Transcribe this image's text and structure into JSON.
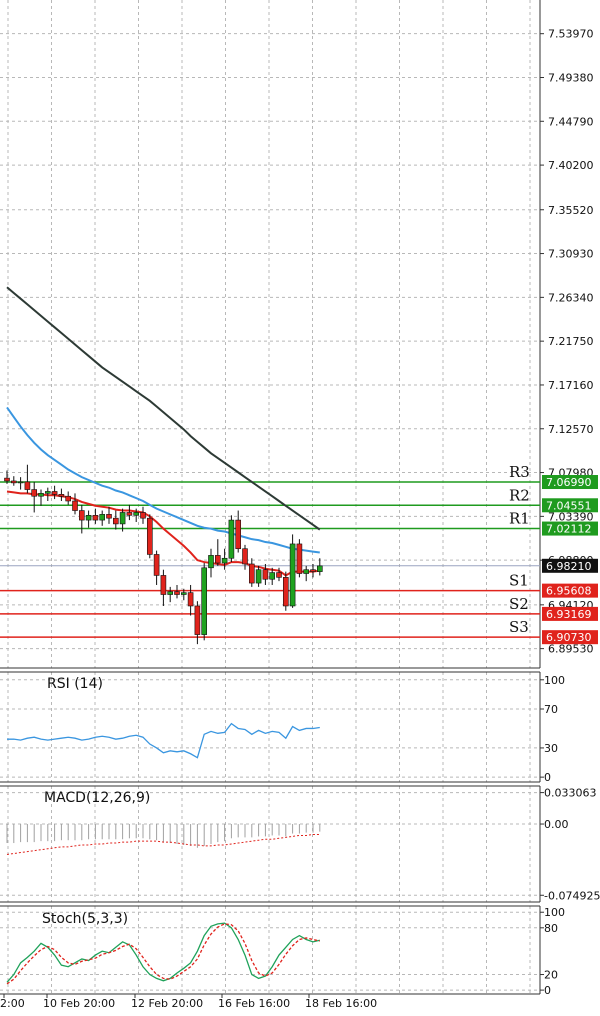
{
  "chart_data": [
    {
      "type": "candlestick",
      "panel": "price",
      "ylim": [
        6.875,
        7.575
      ],
      "y_ticks": [
        {
          "value": 7.5397,
          "label": "7.53970"
        },
        {
          "value": 7.4938,
          "label": "7.49380"
        },
        {
          "value": 7.4479,
          "label": "7.44790"
        },
        {
          "value": 7.402,
          "label": "7.40200"
        },
        {
          "value": 7.3552,
          "label": "7.35520"
        },
        {
          "value": 7.3093,
          "label": "7.30930"
        },
        {
          "value": 7.2634,
          "label": "7.26340"
        },
        {
          "value": 7.2175,
          "label": "7.21750"
        },
        {
          "value": 7.1716,
          "label": "7.17160"
        },
        {
          "value": 7.1257,
          "label": "7.12570"
        },
        {
          "value": 7.0798,
          "label": "7.07980"
        },
        {
          "value": 7.0339,
          "label": "7.03390"
        },
        {
          "value": 6.988,
          "label": "6.98800"
        },
        {
          "value": 6.9412,
          "label": "6.94120"
        },
        {
          "value": 6.8953,
          "label": "6.89530"
        }
      ],
      "x_ticks": [
        "2:00",
        "10 Feb 20:00",
        "12 Feb 20:00",
        "16 Feb 16:00",
        "18 Feb 16:00"
      ],
      "candles": [
        {
          "o": 7.074,
          "h": 7.082,
          "l": 7.068,
          "c": 7.071
        },
        {
          "o": 7.071,
          "h": 7.076,
          "l": 7.066,
          "c": 7.069
        },
        {
          "o": 7.069,
          "h": 7.075,
          "l": 7.062,
          "c": 7.07
        },
        {
          "o": 7.07,
          "h": 7.088,
          "l": 7.058,
          "c": 7.062
        },
        {
          "o": 7.062,
          "h": 7.07,
          "l": 7.038,
          "c": 7.055
        },
        {
          "o": 7.055,
          "h": 7.062,
          "l": 7.045,
          "c": 7.058
        },
        {
          "o": 7.058,
          "h": 7.064,
          "l": 7.05,
          "c": 7.06
        },
        {
          "o": 7.06,
          "h": 7.066,
          "l": 7.052,
          "c": 7.057
        },
        {
          "o": 7.057,
          "h": 7.063,
          "l": 7.05,
          "c": 7.055
        },
        {
          "o": 7.055,
          "h": 7.06,
          "l": 7.046,
          "c": 7.05
        },
        {
          "o": 7.05,
          "h": 7.058,
          "l": 7.036,
          "c": 7.04
        },
        {
          "o": 7.04,
          "h": 7.046,
          "l": 7.016,
          "c": 7.03
        },
        {
          "o": 7.03,
          "h": 7.04,
          "l": 7.022,
          "c": 7.035
        },
        {
          "o": 7.035,
          "h": 7.042,
          "l": 7.026,
          "c": 7.03
        },
        {
          "o": 7.03,
          "h": 7.04,
          "l": 7.024,
          "c": 7.036
        },
        {
          "o": 7.036,
          "h": 7.044,
          "l": 7.026,
          "c": 7.032
        },
        {
          "o": 7.032,
          "h": 7.04,
          "l": 7.02,
          "c": 7.026
        },
        {
          "o": 7.026,
          "h": 7.042,
          "l": 7.018,
          "c": 7.038
        },
        {
          "o": 7.038,
          "h": 7.046,
          "l": 7.03,
          "c": 7.035
        },
        {
          "o": 7.035,
          "h": 7.042,
          "l": 7.028,
          "c": 7.038
        },
        {
          "o": 7.038,
          "h": 7.044,
          "l": 7.026,
          "c": 7.032
        },
        {
          "o": 7.032,
          "h": 7.036,
          "l": 6.99,
          "c": 6.994
        },
        {
          "o": 6.994,
          "h": 6.998,
          "l": 6.962,
          "c": 6.972
        },
        {
          "o": 6.972,
          "h": 6.978,
          "l": 6.94,
          "c": 6.952
        },
        {
          "o": 6.952,
          "h": 6.96,
          "l": 6.944,
          "c": 6.955
        },
        {
          "o": 6.955,
          "h": 6.962,
          "l": 6.948,
          "c": 6.952
        },
        {
          "o": 6.952,
          "h": 6.958,
          "l": 6.946,
          "c": 6.954
        },
        {
          "o": 6.954,
          "h": 6.962,
          "l": 6.93,
          "c": 6.94
        },
        {
          "o": 6.94,
          "h": 6.945,
          "l": 6.9,
          "c": 6.91
        },
        {
          "o": 6.91,
          "h": 6.985,
          "l": 6.904,
          "c": 6.98
        },
        {
          "o": 6.98,
          "h": 7.0,
          "l": 6.97,
          "c": 6.993
        },
        {
          "o": 6.993,
          "h": 7.01,
          "l": 6.982,
          "c": 6.985
        },
        {
          "o": 6.985,
          "h": 7.0,
          "l": 6.978,
          "c": 6.99
        },
        {
          "o": 6.99,
          "h": 7.035,
          "l": 6.986,
          "c": 7.03
        },
        {
          "o": 7.03,
          "h": 7.04,
          "l": 6.996,
          "c": 7.0
        },
        {
          "o": 7.0,
          "h": 7.004,
          "l": 6.978,
          "c": 6.984
        },
        {
          "o": 6.984,
          "h": 6.99,
          "l": 6.96,
          "c": 6.964
        },
        {
          "o": 6.964,
          "h": 6.982,
          "l": 6.96,
          "c": 6.978
        },
        {
          "o": 6.978,
          "h": 6.984,
          "l": 6.962,
          "c": 6.968
        },
        {
          "o": 6.968,
          "h": 6.98,
          "l": 6.962,
          "c": 6.975
        },
        {
          "o": 6.975,
          "h": 6.98,
          "l": 6.966,
          "c": 6.97
        },
        {
          "o": 6.97,
          "h": 6.976,
          "l": 6.935,
          "c": 6.94
        },
        {
          "o": 6.94,
          "h": 7.015,
          "l": 6.938,
          "c": 7.005
        },
        {
          "o": 7.005,
          "h": 7.01,
          "l": 6.97,
          "c": 6.974
        },
        {
          "o": 6.974,
          "h": 6.982,
          "l": 6.966,
          "c": 6.978
        },
        {
          "o": 6.978,
          "h": 6.984,
          "l": 6.97,
          "c": 6.976
        },
        {
          "o": 6.976,
          "h": 6.99,
          "l": 6.972,
          "c": 6.982
        }
      ],
      "moving_averages": [
        {
          "color": "#e0231c",
          "values": [
            7.06,
            7.059,
            7.058,
            7.058,
            7.057,
            7.057,
            7.056,
            7.056,
            7.055,
            7.054,
            7.052,
            7.049,
            7.047,
            7.045,
            7.044,
            7.043,
            7.041,
            7.04,
            7.04,
            7.039,
            7.038,
            7.034,
            7.028,
            7.021,
            7.015,
            7.009,
            7.003,
            6.996,
            6.988,
            6.986,
            6.985,
            6.984,
            6.983,
            6.986,
            6.986,
            6.985,
            6.982,
            6.981,
            6.979,
            6.978,
            6.977,
            6.972,
            6.976,
            6.976,
            6.976,
            6.976,
            6.977
          ]
        },
        {
          "color": "#3a96e0",
          "x_start": 0,
          "values": [
            7.148,
            7.138,
            7.128,
            7.119,
            7.111,
            7.104,
            7.098,
            7.093,
            7.088,
            7.083,
            7.079,
            7.075,
            7.072,
            7.069,
            7.066,
            7.064,
            7.061,
            7.059,
            7.056,
            7.053,
            7.05,
            7.046,
            7.042,
            7.039,
            7.036,
            7.033,
            7.03,
            7.027,
            7.024,
            7.022,
            7.021,
            7.019,
            7.018,
            7.016,
            7.014,
            7.012,
            7.01,
            7.009,
            7.007,
            7.006,
            7.004,
            7.002,
            7.0,
            6.999,
            6.998,
            6.997,
            6.996
          ]
        },
        {
          "color": "#2d3a35",
          "values": [
            7.274,
            7.268,
            7.262,
            7.256,
            7.25,
            7.244,
            7.238,
            7.232,
            7.226,
            7.22,
            7.214,
            7.208,
            7.202,
            7.196,
            7.19,
            7.185,
            7.18,
            7.175,
            7.17,
            7.165,
            7.16,
            7.155,
            7.149,
            7.143,
            7.137,
            7.131,
            7.125,
            7.118,
            7.112,
            7.106,
            7.1,
            7.095,
            7.09,
            7.085,
            7.08,
            7.075,
            7.07,
            7.065,
            7.06,
            7.055,
            7.05,
            7.045,
            7.04,
            7.035,
            7.03,
            7.025,
            7.02
          ]
        }
      ],
      "levels": [
        {
          "name": "R3",
          "value": 7.0699,
          "label": "7.06990",
          "color": "#1f9b1f"
        },
        {
          "name": "R2",
          "value": 7.04551,
          "label": "7.04551",
          "color": "#1f9b1f"
        },
        {
          "name": "R1",
          "value": 7.02112,
          "label": "7.02112",
          "color": "#1f9b1f"
        },
        {
          "name": "S1",
          "value": 6.95608,
          "label": "6.95608",
          "color": "#e0231c"
        },
        {
          "name": "S2",
          "value": 6.93169,
          "label": "6.93169",
          "color": "#e0231c"
        },
        {
          "name": "S3",
          "value": 6.9073,
          "label": "6.90730",
          "color": "#e0231c"
        }
      ],
      "current_price": {
        "value": 6.9821,
        "label": "6.98210"
      }
    },
    {
      "type": "line",
      "panel": "rsi",
      "title": "RSI (14)",
      "ylim": [
        -5,
        108
      ],
      "y_ticks": [
        {
          "value": 100,
          "label": "100"
        },
        {
          "value": 70,
          "label": "70"
        },
        {
          "value": 30,
          "label": "30"
        },
        {
          "value": 0,
          "label": "0"
        }
      ],
      "series": [
        {
          "color": "#3a96e0",
          "values": [
            39,
            39,
            38,
            40,
            41,
            39,
            38,
            39,
            40,
            41,
            40,
            38,
            39,
            41,
            42,
            41,
            39,
            40,
            42,
            43,
            41,
            34,
            30,
            25,
            27,
            26,
            27,
            24,
            20,
            44,
            47,
            45,
            46,
            55,
            50,
            49,
            44,
            48,
            45,
            47,
            46,
            40,
            52,
            48,
            50,
            50,
            51
          ]
        }
      ]
    },
    {
      "type": "bar",
      "panel": "macd",
      "title": "MACD(12,26,9)",
      "ylim": [
        -0.082,
        0.04
      ],
      "y_ticks": [
        {
          "value": 0.033063,
          "label": "0.033063"
        },
        {
          "value": 0.0,
          "label": "0.00"
        },
        {
          "value": -0.074925,
          "label": "-0.074925"
        }
      ],
      "values": [
        -0.02,
        -0.02,
        -0.019,
        -0.019,
        -0.019,
        -0.018,
        -0.018,
        -0.018,
        -0.017,
        -0.017,
        -0.017,
        -0.017,
        -0.016,
        -0.016,
        -0.016,
        -0.016,
        -0.016,
        -0.016,
        -0.015,
        -0.015,
        -0.015,
        -0.016,
        -0.017,
        -0.019,
        -0.02,
        -0.021,
        -0.022,
        -0.023,
        -0.025,
        -0.023,
        -0.021,
        -0.019,
        -0.018,
        -0.015,
        -0.014,
        -0.014,
        -0.014,
        -0.013,
        -0.013,
        -0.012,
        -0.012,
        -0.013,
        -0.01,
        -0.01,
        -0.009,
        -0.009,
        -0.008
      ],
      "signal": [
        -0.032,
        -0.031,
        -0.03,
        -0.029,
        -0.028,
        -0.027,
        -0.026,
        -0.025,
        -0.024,
        -0.024,
        -0.023,
        -0.022,
        -0.022,
        -0.021,
        -0.021,
        -0.02,
        -0.02,
        -0.019,
        -0.019,
        -0.018,
        -0.018,
        -0.018,
        -0.018,
        -0.019,
        -0.019,
        -0.02,
        -0.021,
        -0.022,
        -0.022,
        -0.023,
        -0.023,
        -0.022,
        -0.022,
        -0.021,
        -0.02,
        -0.019,
        -0.018,
        -0.017,
        -0.016,
        -0.016,
        -0.015,
        -0.014,
        -0.013,
        -0.012,
        -0.012,
        -0.011,
        -0.011
      ],
      "bar_color": "#a0a0a0",
      "signal_color": "#e0231c"
    },
    {
      "type": "line",
      "panel": "stoch",
      "title": "Stoch(5,3,3)",
      "ylim": [
        -5,
        108
      ],
      "y_ticks": [
        {
          "value": 100,
          "label": "100"
        },
        {
          "value": 80,
          "label": "80"
        },
        {
          "value": 20,
          "label": "20"
        },
        {
          "value": 0,
          "label": "0"
        }
      ],
      "series": [
        {
          "color": "#1fa25a",
          "values": [
            10,
            20,
            35,
            42,
            50,
            60,
            55,
            45,
            32,
            30,
            35,
            40,
            38,
            45,
            50,
            48,
            55,
            62,
            58,
            45,
            30,
            20,
            15,
            12,
            15,
            22,
            28,
            35,
            50,
            70,
            82,
            85,
            86,
            80,
            65,
            45,
            20,
            15,
            18,
            30,
            45,
            55,
            65,
            70,
            65,
            62,
            64
          ]
        },
        {
          "color": "#e0231c",
          "dashed": true,
          "values": [
            8,
            14,
            25,
            35,
            44,
            52,
            56,
            52,
            42,
            35,
            33,
            37,
            39,
            41,
            46,
            48,
            51,
            56,
            59,
            53,
            42,
            30,
            20,
            15,
            14,
            18,
            24,
            30,
            40,
            58,
            72,
            81,
            85,
            84,
            76,
            60,
            38,
            22,
            18,
            22,
            33,
            46,
            57,
            65,
            67,
            65,
            63
          ]
        }
      ]
    }
  ]
}
